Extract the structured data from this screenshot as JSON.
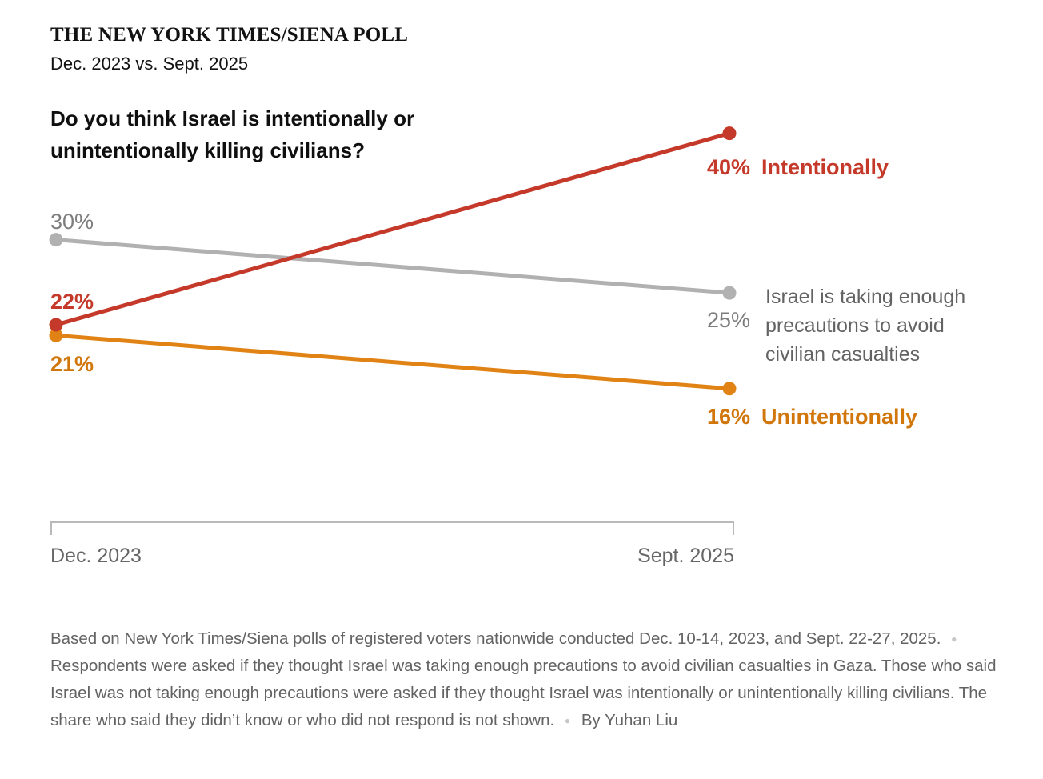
{
  "header": {
    "kicker": "THE NEW YORK TIMES/SIENA POLL",
    "subtitle": "Dec. 2023 vs. Sept. 2025",
    "question": "Do you think Israel is intentionally or unintentionally killing civilians?"
  },
  "chart_data": {
    "type": "line",
    "subtype": "slope",
    "x": [
      "Dec. 2023",
      "Sept. 2025"
    ],
    "value_unit": "%",
    "value_range": [
      16,
      40
    ],
    "grid": false,
    "legend_position": "inline-right",
    "series": [
      {
        "name": "Intentionally",
        "values": [
          22,
          40
        ],
        "color": "#c5392a",
        "start_label": "22%",
        "end_label": "40%",
        "end_text": "Intentionally"
      },
      {
        "name": "Israel is taking enough precautions to avoid civilian casualties",
        "values": [
          30,
          25
        ],
        "color": "#b1b1b1",
        "start_label": "30%",
        "end_label": "25%",
        "end_text": "Israel is taking enough precautions to avoid civilian casualties"
      },
      {
        "name": "Unintentionally",
        "values": [
          21,
          16
        ],
        "color": "#e08314",
        "start_label": "21%",
        "end_label": "16%",
        "end_text": "Unintentionally"
      }
    ]
  },
  "axis": {
    "left_label": "Dec. 2023",
    "right_label": "Sept. 2025"
  },
  "footnote": {
    "part1": "Based on New York Times/Siena polls of registered voters nationwide conducted Dec. 10-14, 2023, and Sept. 22-27, 2025.",
    "part2": "Respondents were asked if they thought Israel was taking enough precautions to avoid civilian casualties in Gaza. Those who said Israel was not taking enough precautions were asked if they thought Israel was intentionally or unintentionally killing civilians. The share who said they didn’t know or who did not respond is not shown.",
    "byline": "By Yuhan Liu",
    "separator": "●"
  },
  "colors": {
    "red": "#c5392a",
    "orange_text": "#d1760b",
    "orange_line": "#e08314",
    "gray_line": "#b1b1b1",
    "gray_value": "#7d7d7d",
    "gray_label": "#636363",
    "axis_line": "#b9b9b9",
    "axis_text": "#666666",
    "footnote_text": "#636363",
    "heading_text": "#121212"
  }
}
